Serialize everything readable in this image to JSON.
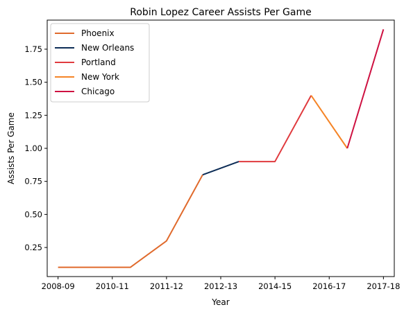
{
  "chart_data": {
    "type": "line",
    "title": "Robin Lopez Career Assists Per Game",
    "xlabel": "Year",
    "ylabel": "Assists Per Game",
    "x_ticks": [
      "2008-09",
      "2010-11",
      "2011-12",
      "2012-13",
      "2014-15",
      "2016-17",
      "2017-18"
    ],
    "y_ticks": [
      "0.25",
      "0.50",
      "0.75",
      "1.00",
      "1.25",
      "1.50",
      "1.75"
    ],
    "ylim": [
      0.03,
      1.97
    ],
    "xlim": [
      -0.3,
      9.3
    ],
    "grid": false,
    "legend_position": "top-left",
    "series": [
      {
        "name": "Phoenix",
        "color": "#e06a2c",
        "points": [
          [
            0,
            0.1
          ],
          [
            1,
            0.1
          ],
          [
            2,
            0.1
          ],
          [
            3,
            0.3
          ],
          [
            4,
            0.8
          ]
        ]
      },
      {
        "name": "New Orleans",
        "color": "#0c2c56",
        "points": [
          [
            4,
            0.8
          ],
          [
            5,
            0.9
          ]
        ]
      },
      {
        "name": "Portland",
        "color": "#e03a3e",
        "points": [
          [
            5,
            0.9
          ],
          [
            6,
            0.9
          ],
          [
            7,
            1.4
          ]
        ]
      },
      {
        "name": "New York",
        "color": "#f58426",
        "points": [
          [
            7,
            1.4
          ],
          [
            8,
            1.0
          ]
        ]
      },
      {
        "name": "Chicago",
        "color": "#ce1141",
        "points": [
          [
            8,
            1.0
          ],
          [
            9,
            1.9
          ]
        ]
      }
    ]
  }
}
